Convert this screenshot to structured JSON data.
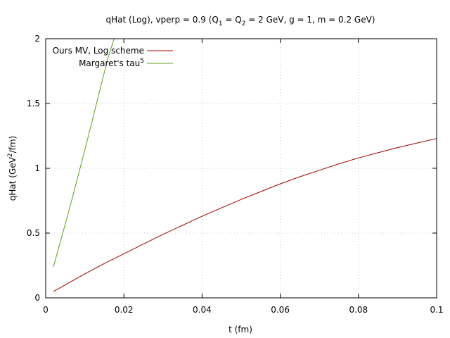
{
  "chart_data": {
    "type": "line",
    "title": {
      "main": "qHat (Log), vperp = 0.9 (Q",
      "sub1": "1",
      "mid": " = Q",
      "sub2": "2",
      "rest": " = 2 GeV, g = 1, m = 0.2 GeV)"
    },
    "xlabel": "t (fm)",
    "ylabel": {
      "pre": "qHat (GeV",
      "sup": "2",
      "post": "/fm)"
    },
    "xlim": [
      0,
      0.1
    ],
    "ylim": [
      0,
      2
    ],
    "xticks": [
      0,
      0.02,
      0.04,
      0.06,
      0.08,
      0.1
    ],
    "xtick_labels": [
      "0",
      "0.02",
      "0.04",
      "0.06",
      "0.08",
      "0.1"
    ],
    "yticks": [
      0,
      0.5,
      1,
      1.5,
      2
    ],
    "ytick_labels": [
      "0",
      "0.5",
      "1",
      "1.5",
      "2"
    ],
    "grid": true,
    "legend_position": "top-left",
    "series": [
      {
        "name": "Ours MV, Log scheme",
        "color": "#a00000",
        "x": [
          0.002,
          0.005,
          0.01,
          0.015,
          0.02,
          0.025,
          0.03,
          0.035,
          0.04,
          0.045,
          0.05,
          0.055,
          0.06,
          0.065,
          0.07,
          0.075,
          0.08,
          0.085,
          0.09,
          0.095,
          0.1
        ],
        "y": [
          0.05,
          0.1,
          0.185,
          0.265,
          0.34,
          0.415,
          0.49,
          0.56,
          0.63,
          0.695,
          0.76,
          0.82,
          0.88,
          0.935,
          0.985,
          1.035,
          1.08,
          1.12,
          1.16,
          1.195,
          1.23
        ]
      },
      {
        "name": "Margaret's tau",
        "name_sup": "5",
        "color": "#5e9c1f",
        "x": [
          0.002,
          0.004,
          0.006,
          0.008,
          0.01,
          0.012,
          0.014,
          0.016,
          0.0175
        ],
        "y": [
          0.24,
          0.46,
          0.68,
          0.91,
          1.14,
          1.38,
          1.62,
          1.86,
          2.0
        ]
      }
    ]
  }
}
